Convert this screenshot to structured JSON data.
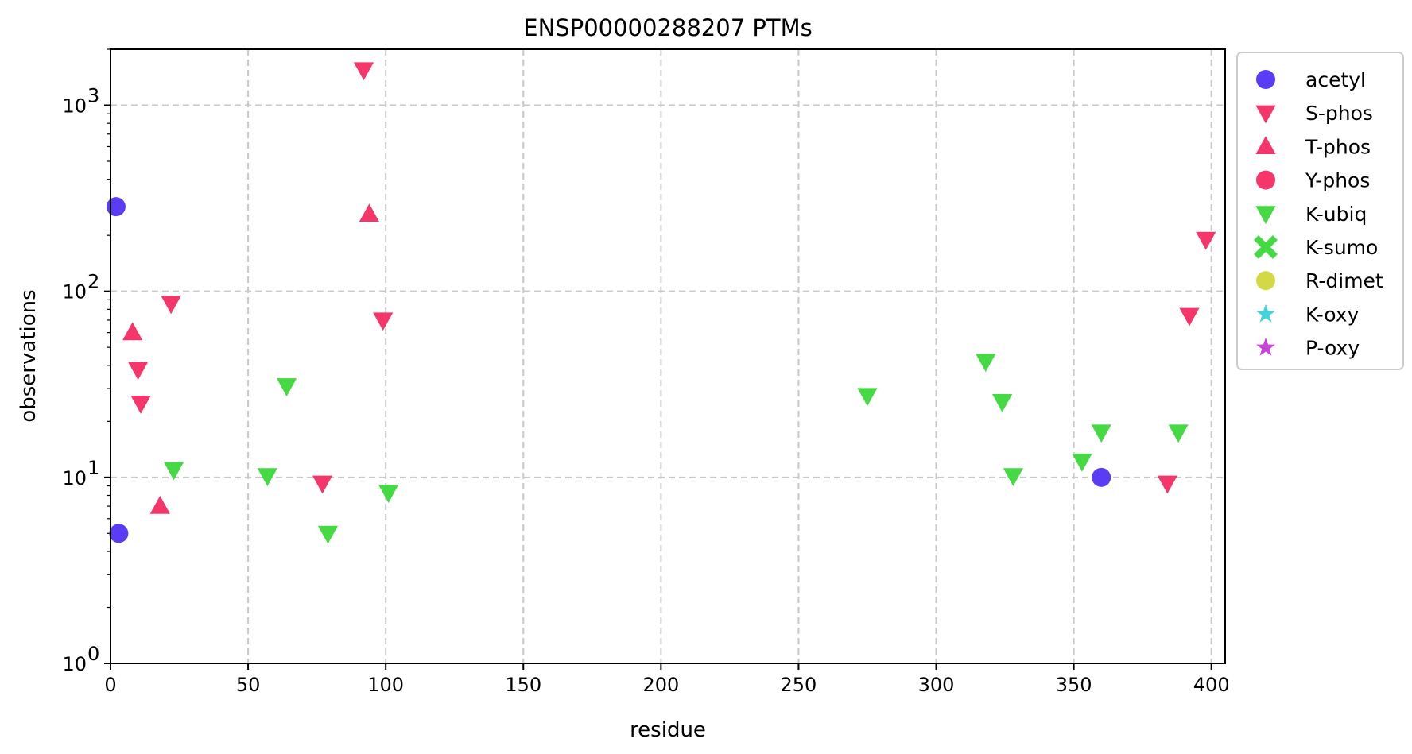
{
  "chart_data": {
    "type": "scatter",
    "title": "ENSP00000288207 PTMs",
    "xlabel": "residue",
    "ylabel": "observations",
    "xlim": [
      0,
      405
    ],
    "ylim": [
      1,
      2000
    ],
    "yscale": "log",
    "grid": true,
    "legend_position": "outside-right",
    "x_ticks": [
      0,
      50,
      100,
      150,
      200,
      250,
      300,
      350,
      400
    ],
    "y_ticks": [
      {
        "value": 1,
        "base": "10",
        "exp": "0"
      },
      {
        "value": 10,
        "base": "10",
        "exp": "1"
      },
      {
        "value": 100,
        "base": "10",
        "exp": "2"
      },
      {
        "value": 1000,
        "base": "10",
        "exp": "3"
      }
    ],
    "series": [
      {
        "name": "acetyl",
        "marker": "circle",
        "color": "#5b3cf5",
        "points": [
          [
            2,
            285
          ],
          [
            3,
            5
          ],
          [
            360,
            10
          ]
        ]
      },
      {
        "name": "S-phos",
        "marker": "triangle-down",
        "color": "#f5366a",
        "points": [
          [
            92,
            1550
          ],
          [
            22,
            86
          ],
          [
            99,
            70
          ],
          [
            10,
            38
          ],
          [
            11,
            25
          ],
          [
            77,
            9.3
          ],
          [
            384,
            9.3
          ],
          [
            392,
            74
          ],
          [
            398,
            190
          ]
        ]
      },
      {
        "name": "T-phos",
        "marker": "triangle-up",
        "color": "#f5366a",
        "points": [
          [
            94,
            260
          ],
          [
            8,
            60
          ],
          [
            18,
            7
          ]
        ]
      },
      {
        "name": "Y-phos",
        "marker": "circle",
        "color": "#f5366a",
        "points": []
      },
      {
        "name": "K-ubiq",
        "marker": "triangle-down",
        "color": "#45d943",
        "points": [
          [
            23,
            11
          ],
          [
            57,
            10.2
          ],
          [
            64,
            31
          ],
          [
            79,
            5
          ],
          [
            101,
            8.3
          ],
          [
            275,
            27.5
          ],
          [
            318,
            42
          ],
          [
            324,
            25.5
          ],
          [
            328,
            10.2
          ],
          [
            353,
            12.2
          ],
          [
            360,
            17.5
          ],
          [
            388,
            17.5
          ]
        ]
      },
      {
        "name": "K-sumo",
        "marker": "x",
        "color": "#45d943",
        "points": []
      },
      {
        "name": "R-dimet",
        "marker": "circle",
        "color": "#d2d944",
        "points": []
      },
      {
        "name": "K-oxy",
        "marker": "star",
        "color": "#44d1d9",
        "points": []
      },
      {
        "name": "P-oxy",
        "marker": "star",
        "color": "#c844d9",
        "points": []
      }
    ]
  }
}
